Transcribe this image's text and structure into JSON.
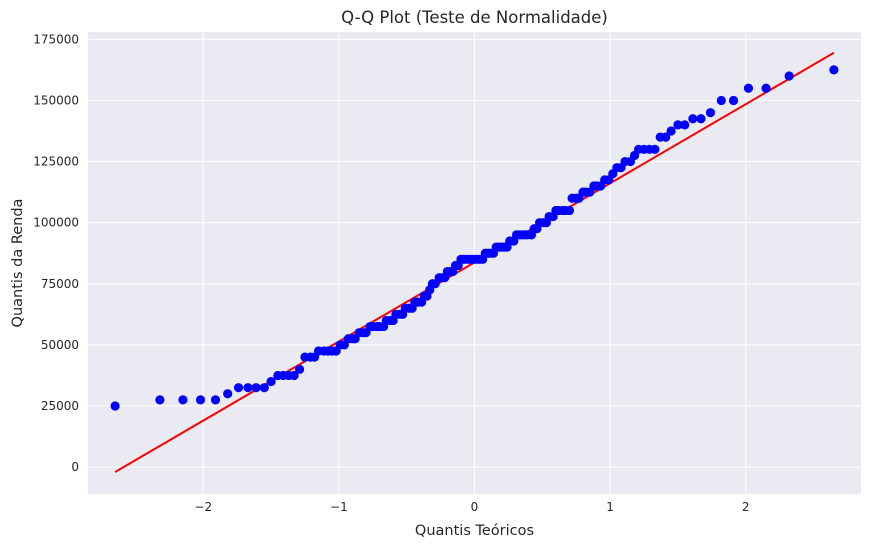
{
  "chart_data": {
    "type": "scatter",
    "title": "Q-Q Plot (Teste de Normalidade)",
    "xlabel": "Quantis Teóricos",
    "ylabel": "Quantis da Renda",
    "xlim": [
      -2.85,
      2.85
    ],
    "ylim": [
      -11000,
      178000
    ],
    "xticks": [
      -2,
      -1,
      0,
      1,
      2
    ],
    "xtick_labels": [
      "−2",
      "−1",
      "0",
      "1",
      "2"
    ],
    "yticks": [
      0,
      25000,
      50000,
      75000,
      100000,
      125000,
      150000,
      175000
    ],
    "ytick_labels": [
      "0",
      "25000",
      "50000",
      "75000",
      "100000",
      "125000",
      "150000",
      "175000"
    ],
    "grid": true,
    "colors": {
      "points": "#0000ff",
      "fit_line": "#ff0000",
      "plot_bg": "#eaeaf2",
      "grid": "#ffffff"
    },
    "fit_line": {
      "x": [
        -2.65,
        2.65
      ],
      "y": [
        -2000,
        169500
      ]
    },
    "series": [
      {
        "points": [
          [
            -2.65,
            25000
          ],
          [
            -2.32,
            27500
          ],
          [
            -2.15,
            27500
          ],
          [
            -2.02,
            27500
          ],
          [
            -1.91,
            27500
          ],
          [
            -1.82,
            30000
          ],
          [
            -1.74,
            32500
          ],
          [
            -1.67,
            32500
          ],
          [
            -1.61,
            32500
          ],
          [
            -1.55,
            32500
          ],
          [
            -1.5,
            35000
          ],
          [
            -1.45,
            37500
          ],
          [
            -1.41,
            37500
          ],
          [
            -1.37,
            37500
          ],
          [
            -1.33,
            37500
          ],
          [
            -1.29,
            40000
          ],
          [
            -1.25,
            45000
          ],
          [
            -1.21,
            45000
          ],
          [
            -1.18,
            45000
          ],
          [
            -1.15,
            47500
          ],
          [
            -1.11,
            47500
          ],
          [
            -1.08,
            47500
          ],
          [
            -1.05,
            47500
          ],
          [
            -1.02,
            47500
          ],
          [
            -0.99,
            50000
          ],
          [
            -0.96,
            50000
          ],
          [
            -0.93,
            52500
          ],
          [
            -0.9,
            52500
          ],
          [
            -0.88,
            52500
          ],
          [
            -0.85,
            55000
          ],
          [
            -0.82,
            55000
          ],
          [
            -0.8,
            55000
          ],
          [
            -0.77,
            57500
          ],
          [
            -0.75,
            57500
          ],
          [
            -0.72,
            57500
          ],
          [
            -0.7,
            57500
          ],
          [
            -0.67,
            57500
          ],
          [
            -0.65,
            60000
          ],
          [
            -0.62,
            60000
          ],
          [
            -0.6,
            60000
          ],
          [
            -0.58,
            62500
          ],
          [
            -0.55,
            62500
          ],
          [
            -0.53,
            62500
          ],
          [
            -0.51,
            65000
          ],
          [
            -0.48,
            65000
          ],
          [
            -0.46,
            65000
          ],
          [
            -0.44,
            67500
          ],
          [
            -0.42,
            67500
          ],
          [
            -0.39,
            67500
          ],
          [
            -0.37,
            70000
          ],
          [
            -0.35,
            70000
          ],
          [
            -0.33,
            72500
          ],
          [
            -0.31,
            75000
          ],
          [
            -0.29,
            75000
          ],
          [
            -0.26,
            77500
          ],
          [
            -0.24,
            77500
          ],
          [
            -0.22,
            77500
          ],
          [
            -0.2,
            80000
          ],
          [
            -0.18,
            80000
          ],
          [
            -0.16,
            80000
          ],
          [
            -0.14,
            82500
          ],
          [
            -0.12,
            82500
          ],
          [
            -0.1,
            85000
          ],
          [
            -0.08,
            85000
          ],
          [
            -0.06,
            85000
          ],
          [
            -0.04,
            85000
          ],
          [
            -0.02,
            85000
          ],
          [
            0.0,
            85000
          ],
          [
            0.02,
            85000
          ],
          [
            0.04,
            85000
          ],
          [
            0.06,
            85000
          ],
          [
            0.08,
            87500
          ],
          [
            0.1,
            87500
          ],
          [
            0.12,
            87500
          ],
          [
            0.14,
            87500
          ],
          [
            0.16,
            90000
          ],
          [
            0.18,
            90000
          ],
          [
            0.2,
            90000
          ],
          [
            0.22,
            90000
          ],
          [
            0.24,
            90000
          ],
          [
            0.26,
            92500
          ],
          [
            0.29,
            92500
          ],
          [
            0.31,
            95000
          ],
          [
            0.33,
            95000
          ],
          [
            0.35,
            95000
          ],
          [
            0.37,
            95000
          ],
          [
            0.39,
            95000
          ],
          [
            0.42,
            95000
          ],
          [
            0.44,
            97500
          ],
          [
            0.46,
            97500
          ],
          [
            0.48,
            100000
          ],
          [
            0.51,
            100000
          ],
          [
            0.53,
            100000
          ],
          [
            0.55,
            102500
          ],
          [
            0.58,
            102500
          ],
          [
            0.6,
            105000
          ],
          [
            0.62,
            105000
          ],
          [
            0.65,
            105000
          ],
          [
            0.67,
            105000
          ],
          [
            0.7,
            105000
          ],
          [
            0.72,
            110000
          ],
          [
            0.75,
            110000
          ],
          [
            0.77,
            110000
          ],
          [
            0.8,
            112500
          ],
          [
            0.82,
            112500
          ],
          [
            0.85,
            112500
          ],
          [
            0.88,
            115000
          ],
          [
            0.9,
            115000
          ],
          [
            0.93,
            115000
          ],
          [
            0.96,
            117500
          ],
          [
            0.99,
            117500
          ],
          [
            1.02,
            120000
          ],
          [
            1.05,
            122500
          ],
          [
            1.08,
            122500
          ],
          [
            1.11,
            125000
          ],
          [
            1.15,
            125000
          ],
          [
            1.18,
            127500
          ],
          [
            1.21,
            130000
          ],
          [
            1.25,
            130000
          ],
          [
            1.29,
            130000
          ],
          [
            1.33,
            130000
          ],
          [
            1.37,
            135000
          ],
          [
            1.41,
            135000
          ],
          [
            1.45,
            137500
          ],
          [
            1.5,
            140000
          ],
          [
            1.55,
            140000
          ],
          [
            1.61,
            142500
          ],
          [
            1.67,
            142500
          ],
          [
            1.74,
            145000
          ],
          [
            1.82,
            150000
          ],
          [
            1.91,
            150000
          ],
          [
            2.02,
            155000
          ],
          [
            2.15,
            155000
          ],
          [
            2.32,
            160000
          ],
          [
            2.65,
            162500
          ]
        ]
      }
    ]
  }
}
